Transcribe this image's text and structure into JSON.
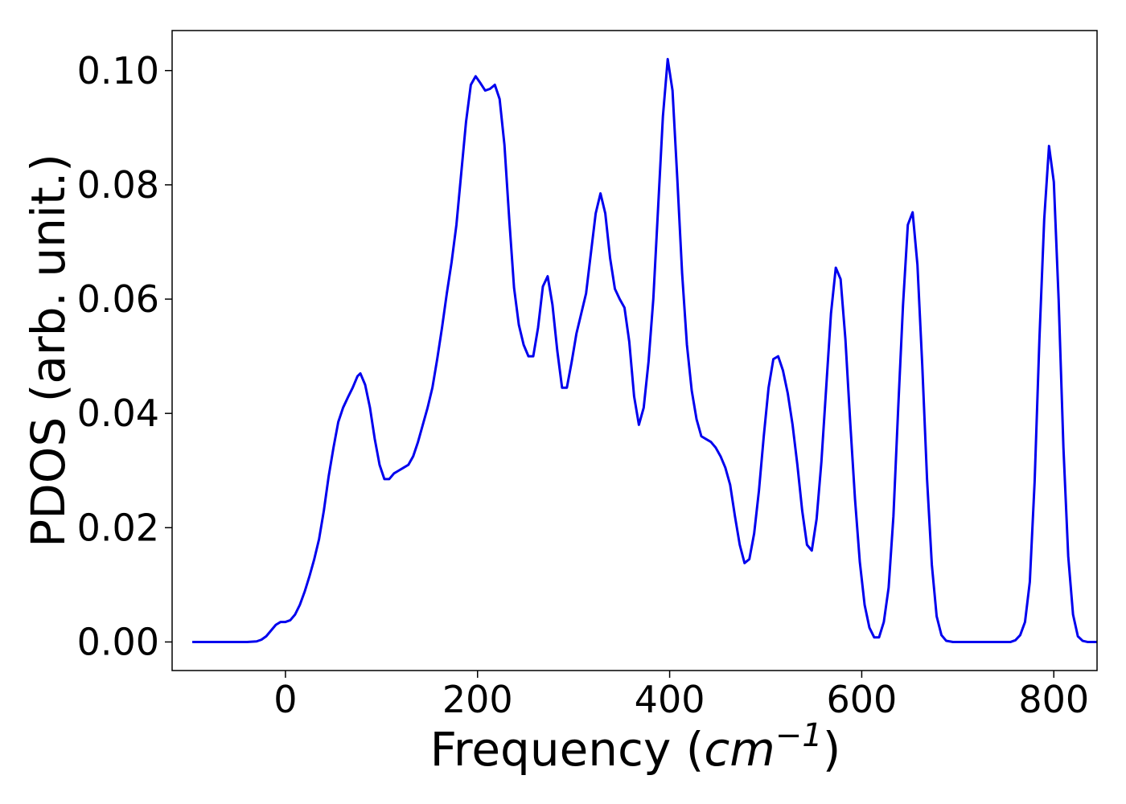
{
  "chart_data": {
    "type": "line",
    "title": "",
    "xlabel": {
      "prefix": "Frequency (",
      "base": "cm",
      "sup": "−1",
      "suffix": ")"
    },
    "ylabel": "PDOS (arb. unit.)",
    "xlim": [
      -118,
      845
    ],
    "ylim": [
      -0.005,
      0.107
    ],
    "xticks": [
      {
        "value": 0,
        "label": "0"
      },
      {
        "value": 200,
        "label": "200"
      },
      {
        "value": 400,
        "label": "400"
      },
      {
        "value": 600,
        "label": "600"
      },
      {
        "value": 800,
        "label": "800"
      }
    ],
    "yticks": [
      {
        "value": 0.0,
        "label": "0.00"
      },
      {
        "value": 0.02,
        "label": "0.02"
      },
      {
        "value": 0.04,
        "label": "0.04"
      },
      {
        "value": 0.06,
        "label": "0.06"
      },
      {
        "value": 0.08,
        "label": "0.08"
      },
      {
        "value": 0.1,
        "label": "0.10"
      }
    ],
    "grid": false,
    "series": [
      {
        "color": "#0000ee",
        "points": [
          [
            -97,
            0.0
          ],
          [
            -40,
            0.0
          ],
          [
            -30,
            0.0001
          ],
          [
            -25,
            0.0004
          ],
          [
            -20,
            0.001
          ],
          [
            -15,
            0.002
          ],
          [
            -10,
            0.003
          ],
          [
            -5,
            0.0035
          ],
          [
            0,
            0.0035
          ],
          [
            5,
            0.0038
          ],
          [
            10,
            0.0048
          ],
          [
            15,
            0.0065
          ],
          [
            20,
            0.0088
          ],
          [
            25,
            0.0115
          ],
          [
            30,
            0.0145
          ],
          [
            35,
            0.018
          ],
          [
            40,
            0.023
          ],
          [
            45,
            0.029
          ],
          [
            50,
            0.034
          ],
          [
            55,
            0.0385
          ],
          [
            60,
            0.041
          ],
          [
            65,
            0.0428
          ],
          [
            70,
            0.0445
          ],
          [
            75,
            0.0465
          ],
          [
            78,
            0.047
          ],
          [
            83,
            0.045
          ],
          [
            88,
            0.041
          ],
          [
            93,
            0.0355
          ],
          [
            98,
            0.031
          ],
          [
            103,
            0.0285
          ],
          [
            108,
            0.0285
          ],
          [
            113,
            0.0295
          ],
          [
            118,
            0.03
          ],
          [
            123,
            0.0305
          ],
          [
            128,
            0.031
          ],
          [
            133,
            0.0325
          ],
          [
            138,
            0.035
          ],
          [
            143,
            0.038
          ],
          [
            148,
            0.041
          ],
          [
            153,
            0.0445
          ],
          [
            158,
            0.0495
          ],
          [
            163,
            0.055
          ],
          [
            168,
            0.061
          ],
          [
            173,
            0.0665
          ],
          [
            178,
            0.073
          ],
          [
            183,
            0.082
          ],
          [
            188,
            0.091
          ],
          [
            193,
            0.0975
          ],
          [
            198,
            0.099
          ],
          [
            203,
            0.0978
          ],
          [
            208,
            0.0965
          ],
          [
            213,
            0.0968
          ],
          [
            218,
            0.0975
          ],
          [
            223,
            0.095
          ],
          [
            228,
            0.087
          ],
          [
            233,
            0.074
          ],
          [
            238,
            0.062
          ],
          [
            243,
            0.0555
          ],
          [
            248,
            0.052
          ],
          [
            253,
            0.05
          ],
          [
            258,
            0.05
          ],
          [
            263,
            0.055
          ],
          [
            268,
            0.0622
          ],
          [
            273,
            0.064
          ],
          [
            278,
            0.059
          ],
          [
            283,
            0.051
          ],
          [
            288,
            0.0445
          ],
          [
            293,
            0.0445
          ],
          [
            298,
            0.049
          ],
          [
            303,
            0.054
          ],
          [
            308,
            0.0575
          ],
          [
            313,
            0.061
          ],
          [
            318,
            0.068
          ],
          [
            323,
            0.075
          ],
          [
            328,
            0.0785
          ],
          [
            333,
            0.075
          ],
          [
            338,
            0.0672
          ],
          [
            343,
            0.0618
          ],
          [
            348,
            0.06
          ],
          [
            353,
            0.0585
          ],
          [
            358,
            0.0525
          ],
          [
            363,
            0.043
          ],
          [
            368,
            0.038
          ],
          [
            373,
            0.041
          ],
          [
            378,
            0.049
          ],
          [
            383,
            0.06
          ],
          [
            388,
            0.076
          ],
          [
            393,
            0.092
          ],
          [
            398,
            0.102
          ],
          [
            403,
            0.0965
          ],
          [
            408,
            0.081
          ],
          [
            413,
            0.0645
          ],
          [
            418,
            0.052
          ],
          [
            423,
            0.044
          ],
          [
            428,
            0.039
          ],
          [
            433,
            0.036
          ],
          [
            438,
            0.0355
          ],
          [
            443,
            0.035
          ],
          [
            448,
            0.034
          ],
          [
            453,
            0.0325
          ],
          [
            458,
            0.0305
          ],
          [
            463,
            0.0275
          ],
          [
            468,
            0.022
          ],
          [
            473,
            0.017
          ],
          [
            478,
            0.0138
          ],
          [
            483,
            0.0145
          ],
          [
            488,
            0.019
          ],
          [
            493,
            0.0265
          ],
          [
            498,
            0.036
          ],
          [
            503,
            0.0445
          ],
          [
            508,
            0.0495
          ],
          [
            513,
            0.05
          ],
          [
            518,
            0.0475
          ],
          [
            523,
            0.0435
          ],
          [
            528,
            0.038
          ],
          [
            533,
            0.031
          ],
          [
            538,
            0.023
          ],
          [
            543,
            0.017
          ],
          [
            548,
            0.016
          ],
          [
            553,
            0.0215
          ],
          [
            558,
            0.0315
          ],
          [
            563,
            0.0445
          ],
          [
            568,
            0.0575
          ],
          [
            573,
            0.0655
          ],
          [
            578,
            0.0635
          ],
          [
            583,
            0.053
          ],
          [
            588,
            0.0385
          ],
          [
            593,
            0.025
          ],
          [
            598,
            0.014
          ],
          [
            603,
            0.0065
          ],
          [
            608,
            0.0025
          ],
          [
            613,
            0.0008
          ],
          [
            618,
            0.0008
          ],
          [
            623,
            0.0035
          ],
          [
            628,
            0.0095
          ],
          [
            633,
            0.022
          ],
          [
            638,
            0.041
          ],
          [
            643,
            0.059
          ],
          [
            648,
            0.073
          ],
          [
            653,
            0.0752
          ],
          [
            658,
            0.066
          ],
          [
            663,
            0.0485
          ],
          [
            668,
            0.0285
          ],
          [
            673,
            0.0135
          ],
          [
            678,
            0.0045
          ],
          [
            683,
            0.0012
          ],
          [
            688,
            0.0002
          ],
          [
            695,
            0.0
          ],
          [
            755,
            0.0
          ],
          [
            760,
            0.0003
          ],
          [
            765,
            0.0012
          ],
          [
            770,
            0.0035
          ],
          [
            775,
            0.0105
          ],
          [
            780,
            0.028
          ],
          [
            785,
            0.053
          ],
          [
            790,
            0.074
          ],
          [
            795,
            0.0868
          ],
          [
            800,
            0.0805
          ],
          [
            805,
            0.06
          ],
          [
            810,
            0.034
          ],
          [
            815,
            0.015
          ],
          [
            820,
            0.0048
          ],
          [
            825,
            0.001
          ],
          [
            830,
            0.0002
          ],
          [
            835,
            0.0
          ],
          [
            900,
            0.0
          ]
        ]
      }
    ]
  }
}
